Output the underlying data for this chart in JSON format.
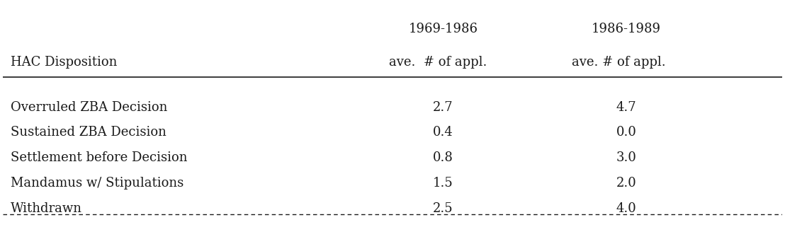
{
  "header_period1": "1969-1986",
  "header_period2": "1986-1989",
  "col_header_left": "HAC Disposition",
  "col_header_mid": "ave.  # of appl.",
  "col_header_right": "ave. # of appl.",
  "rows": [
    {
      "label": "Overruled ZBA Decision",
      "val1": "2.7",
      "val2": "4.7"
    },
    {
      "label": "Sustained ZBA Decision",
      "val1": "0.4",
      "val2": "0.0"
    },
    {
      "label": "Settlement before Decision",
      "val1": "0.8",
      "val2": "3.0"
    },
    {
      "label": "Mandamus w/ Stipulations",
      "val1": "1.5",
      "val2": "2.0"
    },
    {
      "label": "Withdrawn",
      "val1": "2.5",
      "val2": "4.0"
    }
  ],
  "bg_color": "#ffffff",
  "text_color": "#1a1a1a",
  "font_size": 13,
  "header_font_size": 13,
  "fig_width": 11.08,
  "fig_height": 3.21
}
